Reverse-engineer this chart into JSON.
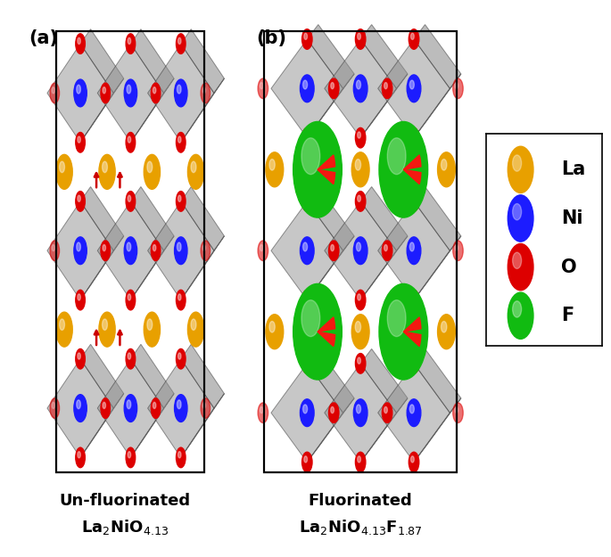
{
  "fig_width": 6.85,
  "fig_height": 6.25,
  "dpi": 100,
  "background_color": "#ffffff",
  "panel_a_label": "(a)",
  "panel_b_label": "(b)",
  "label_fontsize": 15,
  "title_fontsize": 13,
  "legend_elements": [
    {
      "label": "La",
      "color": "#E8A000"
    },
    {
      "label": "Ni",
      "color": "#1C1CFF"
    },
    {
      "label": "O",
      "color": "#DD0000"
    },
    {
      "label": "F",
      "color": "#11BB11"
    }
  ],
  "atom_colors": {
    "La": "#E8A000",
    "Ni": "#1C1CFF",
    "O": "#DD0000",
    "F": "#11BB11"
  },
  "oct_face_color": "#909090",
  "oct_edge_color": "#303030",
  "oct_alpha": 0.5,
  "box_color": "#000000",
  "arrow_color": "#CC0000"
}
